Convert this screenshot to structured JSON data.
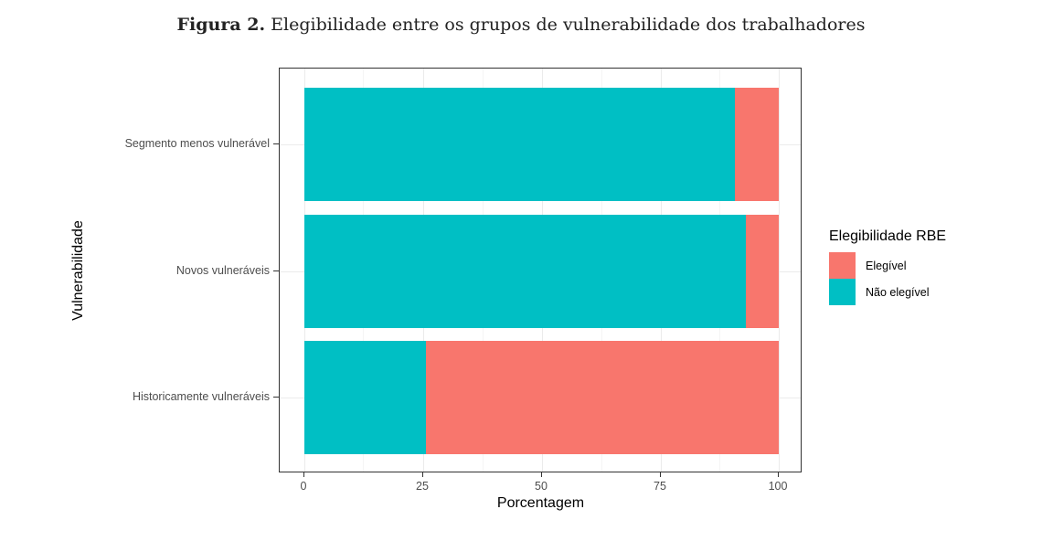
{
  "figure": {
    "title_prefix": "Figura 2.",
    "title_text": " Elegibilidade entre os grupos de vulnerabilidade dos trabalhadores"
  },
  "chart_data": {
    "type": "bar",
    "orientation": "horizontal",
    "stacked": true,
    "title": "Figura 2. Elegibilidade entre os grupos de vulnerabilidade dos trabalhadores",
    "xlabel": "Porcentagem",
    "ylabel": "Vulnerabilidade",
    "xlim": [
      0,
      100
    ],
    "xticks": [
      0,
      25,
      50,
      75,
      100
    ],
    "categories": [
      "Segmento menos vulnerável",
      "Novos vulneráveis",
      "Historicamente vulneráveis"
    ],
    "series": [
      {
        "name": "Não elegível",
        "color": "#00BFC4",
        "values": [
          90.8,
          93.1,
          25.6
        ]
      },
      {
        "name": "Elegível",
        "color": "#F8766D",
        "values": [
          9.2,
          6.9,
          74.4
        ]
      }
    ],
    "legend": {
      "title": "Elegibilidade RBE",
      "position": "right",
      "entries": [
        {
          "label": "Elegível",
          "color": "#F8766D"
        },
        {
          "label": "Não elegível",
          "color": "#00BFC4"
        }
      ]
    },
    "grid": true
  },
  "axis": {
    "x_ticks": [
      "0",
      "25",
      "50",
      "75",
      "100"
    ],
    "y_ticks": [
      "Segmento menos vulnerável",
      "Novos vulneráveis",
      "Historicamente vulneráveis"
    ],
    "xlabel": "Porcentagem",
    "ylabel": "Vulnerabilidade"
  },
  "legend": {
    "title": "Elegibilidade RBE",
    "items": [
      {
        "label": "Elegível",
        "color": "#F8766D"
      },
      {
        "label": "Não elegível",
        "color": "#00BFC4"
      }
    ]
  }
}
